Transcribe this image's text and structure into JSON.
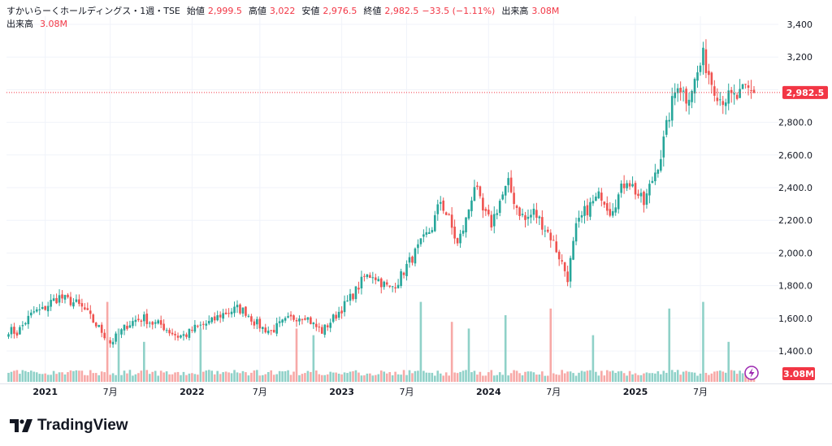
{
  "legend": {
    "symbol": "すかいらーくホールディングス・1週・TSE",
    "open_label": "始値",
    "open_value": "2,999.5",
    "high_label": "高値",
    "high_value": "3,022",
    "low_label": "安値",
    "low_value": "2,976.5",
    "close_label": "終値",
    "close_value": "2,982.5",
    "change": "−33.5 (−1.11%)",
    "volume_label": "出来高",
    "volume_value": "3.08M",
    "volume_label2": "出来高",
    "volume_value2": "3.08M"
  },
  "price_tag": "2,982.5",
  "volume_tag": "3.08M",
  "brand": "TradingView",
  "colors": {
    "up": "#26a69a",
    "down": "#ef5350",
    "up_vol": "#8fd1c8",
    "down_vol": "#f7a9a7",
    "tag": "#f23645",
    "accent": "#9c27b0"
  },
  "chart_data": {
    "type": "candlestick",
    "timeframe": "1週",
    "y_axis": {
      "ticks": [
        "1,400.0",
        "1,600.0",
        "1,800.0",
        "2,000.0",
        "2,200.0",
        "2,400.0",
        "2,600.0",
        "2,800.0",
        "3,200",
        "3,400"
      ],
      "range": [
        1300,
        3450
      ]
    },
    "x_axis": {
      "ticks": [
        "2021",
        "7月",
        "2022",
        "7月",
        "2023",
        "7月",
        "2024",
        "7月",
        "2025",
        "7月"
      ]
    },
    "last_price": 2982.5,
    "anchor_closes": [
      [
        0,
        1530
      ],
      [
        3,
        1510
      ],
      [
        6,
        1580
      ],
      [
        9,
        1640
      ],
      [
        12,
        1650
      ],
      [
        15,
        1700
      ],
      [
        18,
        1730
      ],
      [
        21,
        1710
      ],
      [
        24,
        1690
      ],
      [
        27,
        1650
      ],
      [
        30,
        1580
      ],
      [
        33,
        1520
      ],
      [
        36,
        1450
      ],
      [
        39,
        1500
      ],
      [
        42,
        1560
      ],
      [
        45,
        1590
      ],
      [
        48,
        1600
      ],
      [
        51,
        1570
      ],
      [
        54,
        1560
      ],
      [
        57,
        1520
      ],
      [
        60,
        1490
      ],
      [
        63,
        1500
      ],
      [
        66,
        1540
      ],
      [
        69,
        1560
      ],
      [
        72,
        1580
      ],
      [
        75,
        1620
      ],
      [
        78,
        1640
      ],
      [
        81,
        1660
      ],
      [
        84,
        1640
      ],
      [
        87,
        1580
      ],
      [
        90,
        1540
      ],
      [
        93,
        1520
      ],
      [
        96,
        1560
      ],
      [
        99,
        1590
      ],
      [
        102,
        1610
      ],
      [
        105,
        1620
      ],
      [
        108,
        1560
      ],
      [
        111,
        1520
      ],
      [
        114,
        1580
      ],
      [
        117,
        1640
      ],
      [
        120,
        1700
      ],
      [
        123,
        1770
      ],
      [
        126,
        1850
      ],
      [
        129,
        1870
      ],
      [
        132,
        1820
      ],
      [
        135,
        1780
      ],
      [
        138,
        1830
      ],
      [
        141,
        1920
      ],
      [
        144,
        2000
      ],
      [
        147,
        2080
      ],
      [
        150,
        2160
      ],
      [
        153,
        2320
      ],
      [
        156,
        2200
      ],
      [
        159,
        2050
      ],
      [
        162,
        2200
      ],
      [
        165,
        2420
      ],
      [
        168,
        2250
      ],
      [
        171,
        2180
      ],
      [
        174,
        2320
      ],
      [
        177,
        2420
      ],
      [
        180,
        2280
      ],
      [
        183,
        2200
      ],
      [
        186,
        2250
      ],
      [
        189,
        2180
      ],
      [
        192,
        2100
      ],
      [
        195,
        1980
      ],
      [
        198,
        1850
      ],
      [
        201,
        2150
      ],
      [
        204,
        2250
      ],
      [
        207,
        2310
      ],
      [
        210,
        2360
      ],
      [
        213,
        2260
      ],
      [
        216,
        2350
      ],
      [
        219,
        2460
      ],
      [
        222,
        2380
      ],
      [
        225,
        2300
      ],
      [
        228,
        2450
      ],
      [
        231,
        2600
      ],
      [
        234,
        2850
      ],
      [
        237,
        3050
      ],
      [
        240,
        2950
      ],
      [
        243,
        3050
      ],
      [
        246,
        3200
      ],
      [
        249,
        3050
      ],
      [
        252,
        2950
      ],
      [
        255,
        2950
      ],
      [
        258,
        2950
      ],
      [
        261,
        3000
      ],
      [
        264,
        2982.5
      ]
    ],
    "volume_range_m": [
      0,
      14
    ],
    "volume_spikes": {
      "35": 12,
      "39": 8,
      "48": 6,
      "68": 8,
      "102": 8,
      "108": 7,
      "146": 12,
      "157": 9,
      "163": 8,
      "176": 10,
      "192": 11,
      "207": 7,
      "234": 11,
      "246": 12,
      "255": 6
    }
  }
}
